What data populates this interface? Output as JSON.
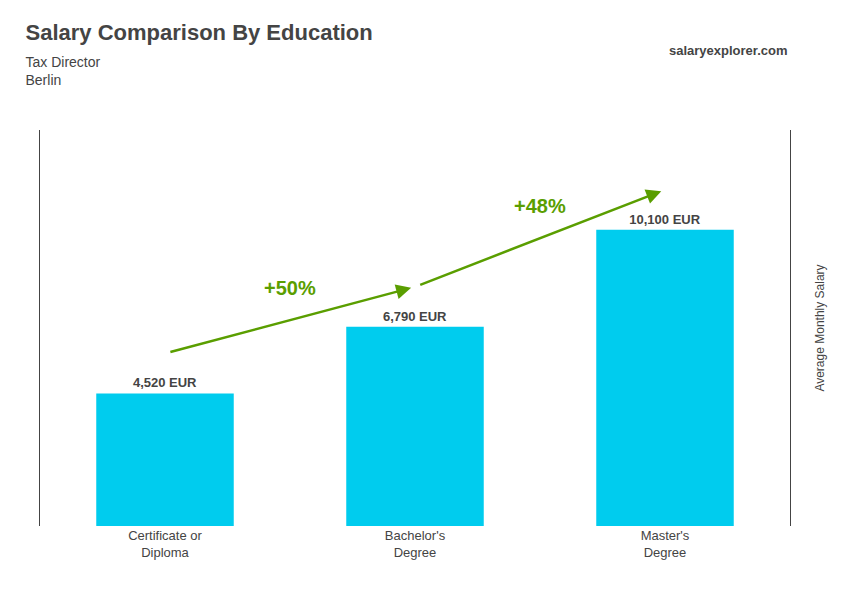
{
  "chart_data": {
    "type": "bar",
    "title": "Salary Comparison By Education",
    "subtitle": "Tax Director\nBerlin",
    "ylabel": "Average Monthly Salary",
    "categories": [
      "Certificate or\nDiploma",
      "Bachelor's\nDegree",
      "Master's\nDegree"
    ],
    "values": [
      4520,
      6790,
      10100
    ],
    "value_labels": [
      "4,520 EUR",
      "6,790 EUR",
      "10,100 EUR"
    ],
    "data_labels": true,
    "color": "#00ccee",
    "annotations": [
      {
        "text": "+50%",
        "between": [
          0,
          1
        ]
      },
      {
        "text": "+48%",
        "between": [
          1,
          2
        ]
      },
      {
        "text": "salaryexplorer.com"
      }
    ],
    "ylim": [
      0,
      13500
    ],
    "tick_labels": "x",
    "grid": false
  }
}
